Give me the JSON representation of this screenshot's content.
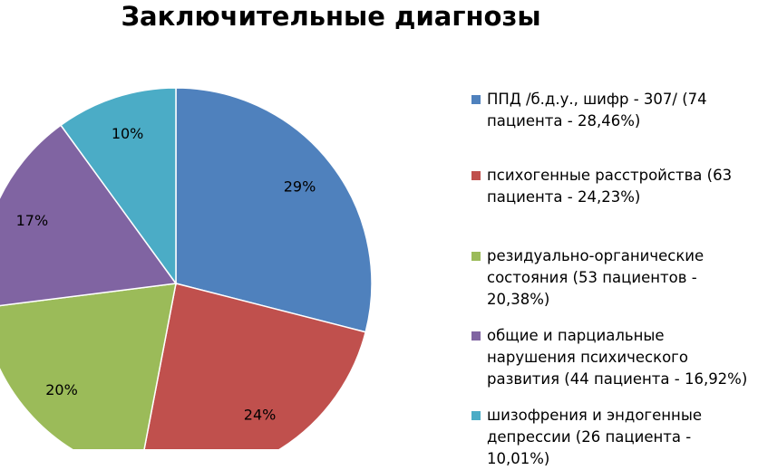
{
  "chart_data": {
    "type": "pie",
    "title": "Заключительные диагнозы",
    "categories": [
      "ППД /б.д.у., шифр - 307/ (74 пациента - 28,46%)",
      "психогенные расстройства (63 пациента - 24,23%)",
      "резидуально-органические состояния (53 пациентов - 20,38%)",
      "общие и парциальные нарушения психического развития (44 пациента - 16,92%)",
      "шизофрения и эндогенные депрессии (26 пациента - 10,01%)"
    ],
    "values": [
      29,
      24,
      20,
      17,
      10
    ],
    "value_labels": [
      "29%",
      "24%",
      "20%",
      "17%",
      "10%"
    ],
    "colors": [
      "#4f81bd",
      "#c0504d",
      "#9bbb59",
      "#8064a2",
      "#4bacc6"
    ],
    "legend": "right"
  }
}
